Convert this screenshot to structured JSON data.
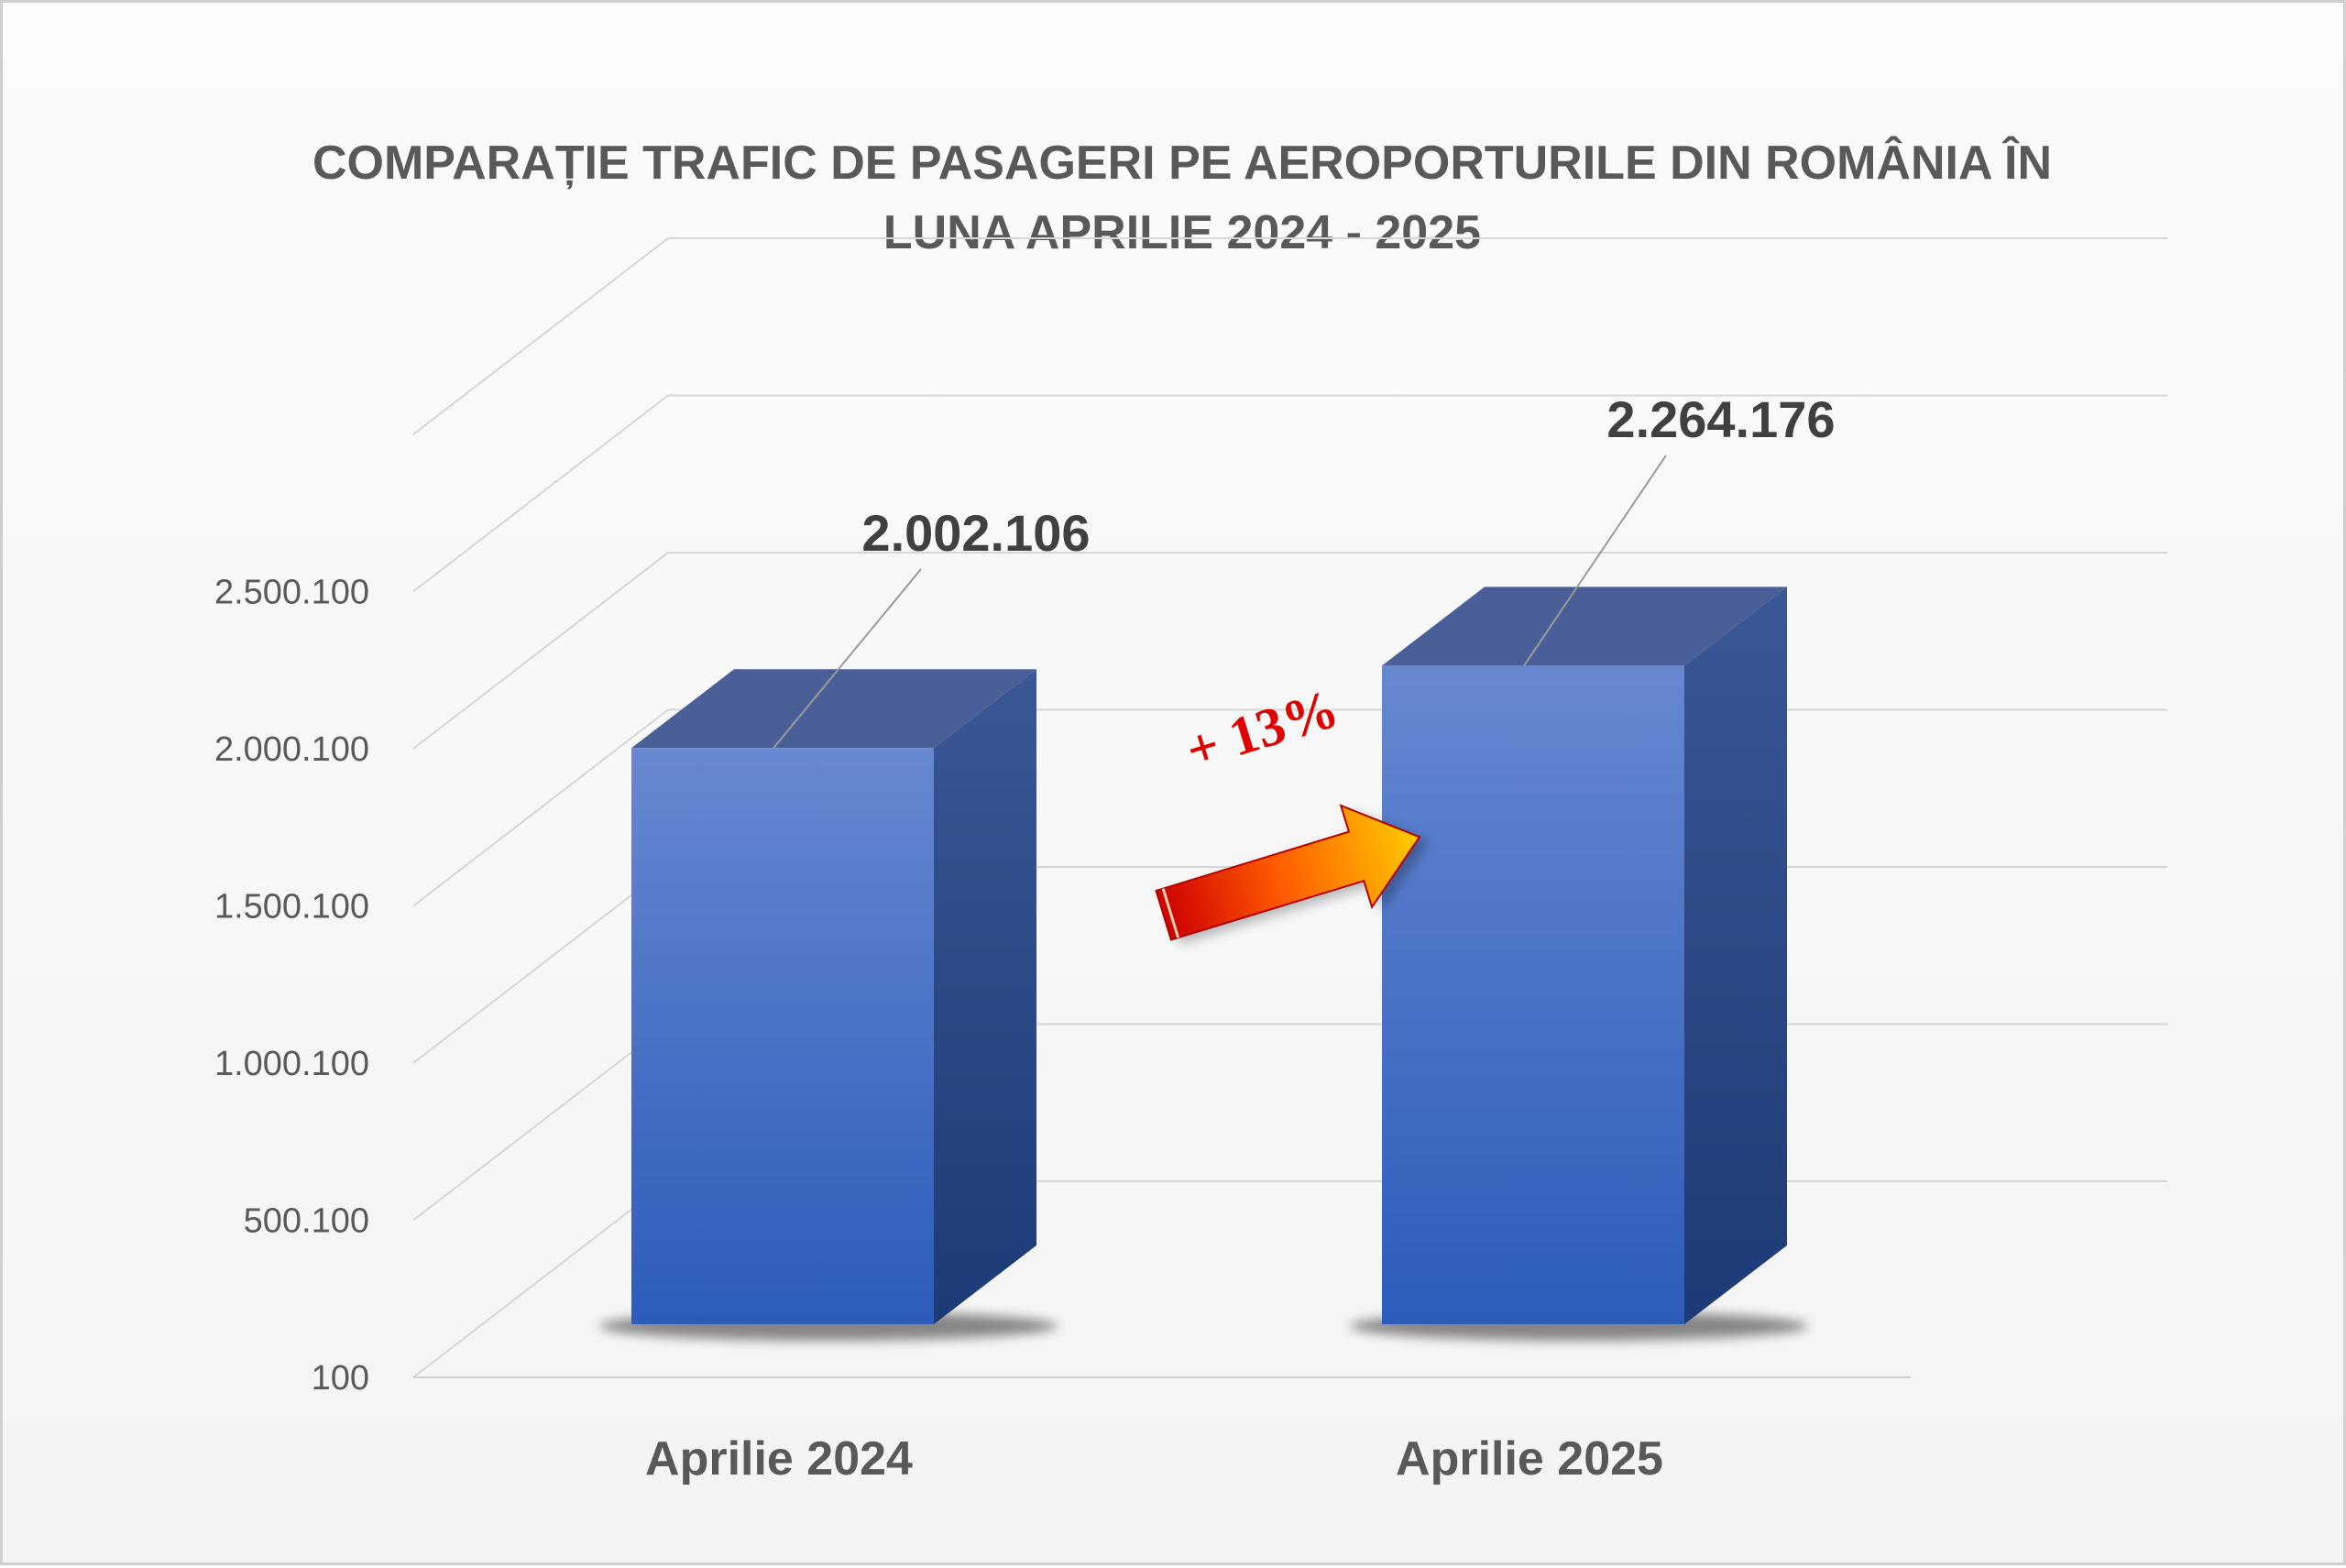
{
  "chart_data": {
    "type": "bar",
    "title": "COMPARAȚIE TRAFIC DE PASAGERI PE AEROPORTURILE DIN ROMÂNIA ÎN LUNA APRILIE 2024 - 2025",
    "title_lines": [
      "COMPARAȚIE TRAFIC DE PASAGERI PE AEROPORTURILE DIN ROMÂNIA ÎN",
      "LUNA APRILIE 2024 - 2025"
    ],
    "categories": [
      "Aprilie 2024",
      "Aprilie 2025"
    ],
    "values": [
      2002106,
      2264176
    ],
    "value_labels": [
      "2.002.106",
      "2.264.176"
    ],
    "ylim": [
      100,
      3000100
    ],
    "y_ticks": [
      100,
      500100,
      1000100,
      1500100,
      2000100,
      2500100
    ],
    "y_tick_labels": [
      "100",
      "500.100",
      "1.000.100",
      "1.500.100",
      "2.000.100",
      "2.500.100"
    ],
    "annotation": "+ 13%",
    "xlabel": "",
    "ylabel": "",
    "grid": true,
    "legend": "none",
    "style": "3d-column",
    "colors": {
      "bar_front_top": "#6688d0",
      "bar_front_bottom": "#2d5cbb",
      "bar_side": "#1f3f7e",
      "bar_top": "#4a5f98",
      "arrow_start": "#cc0000",
      "arrow_end": "#ffcc00",
      "annotation_text": "#e00000"
    }
  }
}
